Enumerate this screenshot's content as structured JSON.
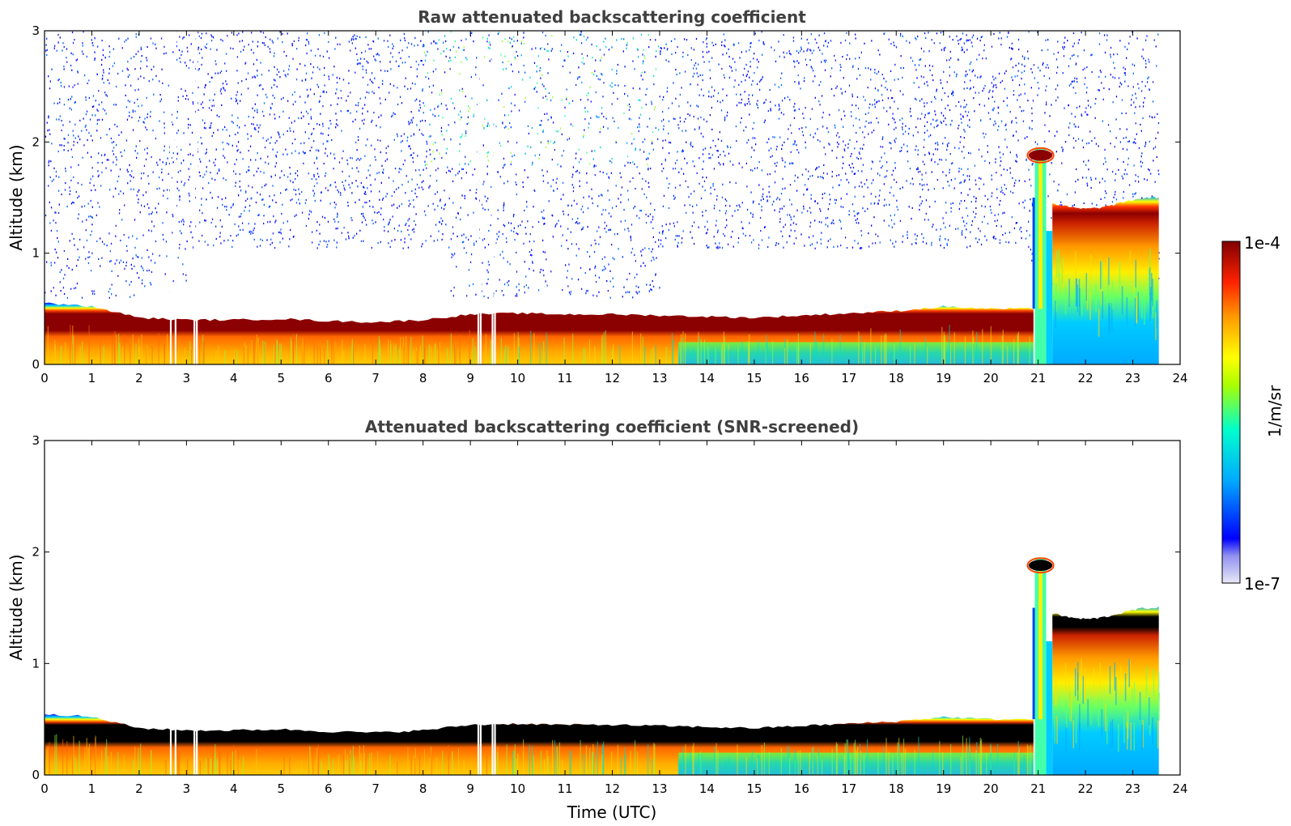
{
  "chart_data": [
    {
      "type": "heatmap",
      "title": "Raw attenuated backscattering coefficient",
      "xlabel": "",
      "ylabel": "Altitude (km)",
      "xlim": [
        0,
        24
      ],
      "ylim": [
        0,
        3
      ],
      "xticks": [
        "0",
        "1",
        "2",
        "3",
        "4",
        "5",
        "6",
        "7",
        "8",
        "9",
        "10",
        "11",
        "12",
        "13",
        "14",
        "15",
        "16",
        "17",
        "18",
        "19",
        "20",
        "21",
        "22",
        "23",
        "24"
      ],
      "yticks": [
        "0",
        "1",
        "2",
        "3"
      ],
      "data_end_time": 23.55,
      "layer_top_km": [
        {
          "t": 0,
          "z": 0.55
        },
        {
          "t": 1,
          "z": 0.52
        },
        {
          "t": 2,
          "z": 0.42
        },
        {
          "t": 3,
          "z": 0.4
        },
        {
          "t": 4,
          "z": 0.4
        },
        {
          "t": 5,
          "z": 0.41
        },
        {
          "t": 6,
          "z": 0.39
        },
        {
          "t": 7,
          "z": 0.38
        },
        {
          "t": 8,
          "z": 0.4
        },
        {
          "t": 9,
          "z": 0.45
        },
        {
          "t": 10,
          "z": 0.46
        },
        {
          "t": 11,
          "z": 0.45
        },
        {
          "t": 12,
          "z": 0.45
        },
        {
          "t": 13,
          "z": 0.44
        },
        {
          "t": 14,
          "z": 0.43
        },
        {
          "t": 15,
          "z": 0.42
        },
        {
          "t": 16,
          "z": 0.44
        },
        {
          "t": 17,
          "z": 0.46
        },
        {
          "t": 18,
          "z": 0.48
        },
        {
          "t": 19,
          "z": 0.52
        },
        {
          "t": 20,
          "z": 0.5
        },
        {
          "t": 20.9,
          "z": 0.5
        }
      ],
      "features": {
        "plume_time": 21.05,
        "plume_top_km": 1.95,
        "elevated_layer": {
          "start": 21.3,
          "end": 23.55,
          "top_km": 1.45,
          "dense_km": [
            1.25,
            1.4
          ]
        },
        "gaps_time": [
          2.65,
          2.75,
          3.15,
          3.2,
          9.15,
          9.2,
          9.45,
          9.5
        ]
      },
      "noise": "high"
    },
    {
      "type": "heatmap",
      "title": "Attenuated backscattering coefficient (SNR-screened)",
      "xlabel": "Time (UTC)",
      "ylabel": "Altitude (km)",
      "xlim": [
        0,
        24
      ],
      "ylim": [
        0,
        3
      ],
      "xticks": [
        "0",
        "1",
        "2",
        "3",
        "4",
        "5",
        "6",
        "7",
        "8",
        "9",
        "10",
        "11",
        "12",
        "13",
        "14",
        "15",
        "16",
        "17",
        "18",
        "19",
        "20",
        "21",
        "22",
        "23",
        "24"
      ],
      "yticks": [
        "0",
        "1",
        "2",
        "3"
      ],
      "data_end_time": 23.55,
      "saturated_color": "#000000",
      "noise": "none"
    }
  ],
  "colorbar": {
    "label": "1/m/sr",
    "max_label": "1e-4",
    "min_label": "1e-7",
    "colormap": [
      "#e8e8f8",
      "#0000ff",
      "#00aaff",
      "#00ffcc",
      "#aaff00",
      "#ffff00",
      "#ff9900",
      "#ff2200",
      "#800000"
    ]
  }
}
